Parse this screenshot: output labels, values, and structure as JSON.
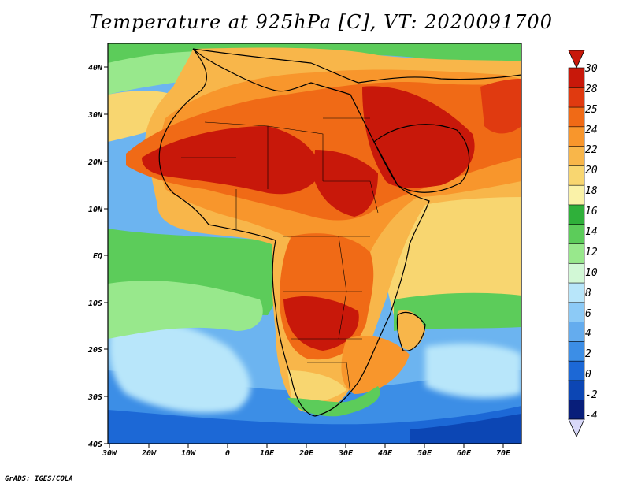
{
  "title": "Temperature at 925hPa [C], VT: 2020091700",
  "credit": "GrADS: IGES/COLA",
  "map": {
    "lat_ticks": [
      "40N",
      "30N",
      "20N",
      "10N",
      "EQ",
      "10S",
      "20S",
      "30S",
      "40S"
    ],
    "lon_ticks": [
      "30W",
      "20W",
      "10W",
      "0",
      "10E",
      "20E",
      "30E",
      "40E",
      "50E",
      "60E",
      "70E"
    ],
    "lat_range": [
      -40,
      45
    ],
    "lon_range": [
      -30,
      75
    ]
  },
  "colorbar": {
    "labels": [
      "30",
      "28",
      "25",
      "24",
      "22",
      "20",
      "18",
      "16",
      "14",
      "12",
      "10",
      "8",
      "6",
      "4",
      "2",
      "0",
      "-2",
      "-4"
    ],
    "colors": [
      "#c8180a",
      "#e03a10",
      "#f06a16",
      "#f8962c",
      "#f8b64a",
      "#f8d670",
      "#faf2a8",
      "#2fb03a",
      "#5ccc5a",
      "#98e88c",
      "#d2f8d6",
      "#b8e6fa",
      "#8ccaf6",
      "#64acee",
      "#3c8ee6",
      "#1c68d6",
      "#0c46b4",
      "#081e7a"
    ],
    "over_color": "#c8180a",
    "under_color": "#d8d8f8"
  }
}
